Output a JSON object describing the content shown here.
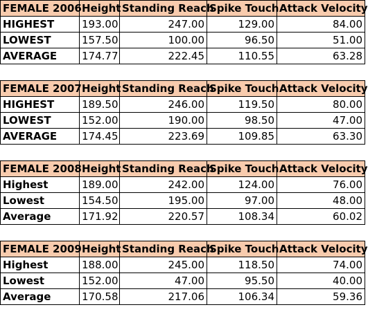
{
  "columns": [
    "Height",
    "Standing Reach",
    "Spike Touch",
    "Attack Velocity"
  ],
  "sections": [
    {
      "title": "FEMALE 2006",
      "rows": [
        {
          "label": "HIGHEST",
          "values": [
            "193.00",
            "247.00",
            "129.00",
            "84.00"
          ]
        },
        {
          "label": "LOWEST",
          "values": [
            "157.50",
            "100.00",
            "96.50",
            "51.00"
          ]
        },
        {
          "label": "AVERAGE",
          "values": [
            "174.77",
            "222.45",
            "110.55",
            "63.28"
          ]
        }
      ]
    },
    {
      "title": "FEMALE 2007",
      "rows": [
        {
          "label": "HIGHEST",
          "values": [
            "189.50",
            "246.00",
            "119.50",
            "80.00"
          ]
        },
        {
          "label": "LOWEST",
          "values": [
            "152.00",
            "190.00",
            "98.50",
            "47.00"
          ]
        },
        {
          "label": "AVERAGE",
          "values": [
            "174.45",
            "223.69",
            "109.85",
            "63.30"
          ]
        }
      ]
    },
    {
      "title": "FEMALE 2008",
      "rows": [
        {
          "label": "Highest",
          "values": [
            "189.00",
            "242.00",
            "124.00",
            "76.00"
          ]
        },
        {
          "label": "Lowest",
          "values": [
            "154.50",
            "195.00",
            "97.00",
            "48.00"
          ]
        },
        {
          "label": "Average",
          "values": [
            "171.92",
            "220.57",
            "108.34",
            "60.02"
          ]
        }
      ]
    },
    {
      "title": "FEMALE 2009",
      "rows": [
        {
          "label": "Highest",
          "values": [
            "188.00",
            "245.00",
            "118.50",
            "74.00"
          ]
        },
        {
          "label": "Lowest",
          "values": [
            "152.00",
            "47.00",
            "95.50",
            "40.00"
          ]
        },
        {
          "label": "Average",
          "values": [
            "170.58",
            "217.06",
            "106.34",
            "59.36"
          ]
        }
      ]
    }
  ],
  "colors": {
    "header_fill": "#f8cbad",
    "border": "#000000"
  }
}
